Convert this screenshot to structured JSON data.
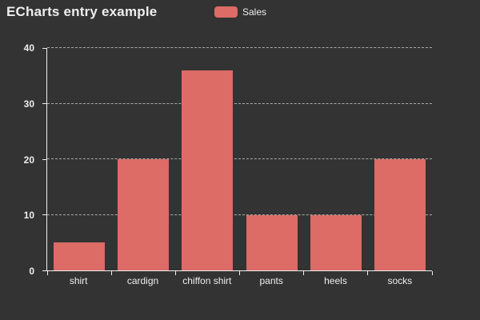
{
  "title": {
    "text": "ECharts entry example"
  },
  "legend": {
    "position": "top-center",
    "items": [
      {
        "label": "Sales",
        "color": "#dd6b66"
      }
    ]
  },
  "colors": {
    "background": "#333333",
    "bar": "#dd6b66",
    "axis_line": "#eeeeee",
    "gridline": "#aaaaaa",
    "text": "#eeeeee",
    "title_text": "#eeeeee"
  },
  "chart_data": {
    "type": "bar",
    "title": "ECharts entry example",
    "categories": [
      "shirt",
      "cardign",
      "chiffon shirt",
      "pants",
      "heels",
      "socks"
    ],
    "series": [
      {
        "name": "Sales",
        "values": [
          5,
          20,
          36,
          10,
          10,
          20
        ]
      }
    ],
    "xlabel": "",
    "ylabel": "",
    "ylim": [
      0,
      40
    ],
    "yticks": [
      0,
      10,
      20,
      30,
      40
    ],
    "ytick_labels": [
      "0",
      "10",
      "20",
      "30",
      "40"
    ],
    "grid": "horizontal-dashed",
    "legend_position": "top-center",
    "bar_width_fraction": 0.8
  }
}
